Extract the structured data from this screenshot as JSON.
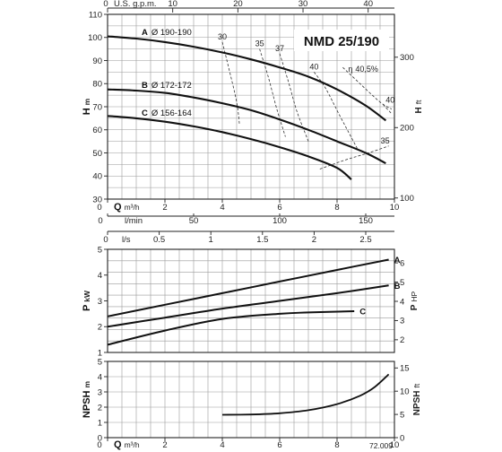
{
  "chart_data": [
    {
      "type": "line",
      "title": "NMD 25/190",
      "ylabel": "H",
      "ylabel_unit": "m",
      "ylabel_right": "H",
      "ylabel_right_unit": "ft",
      "xlabel": "Q",
      "xlabel_unit": "m³/h",
      "top_axis_label": "U.S. g.p.m.",
      "xlim": [
        0,
        10
      ],
      "ylim": [
        30,
        110
      ],
      "x_ticks": [
        "0",
        "2",
        "4",
        "6",
        "8",
        "10"
      ],
      "y_ticks": [
        "30",
        "40",
        "50",
        "60",
        "70",
        "80",
        "90",
        "100",
        "110"
      ],
      "top_ticks": [
        "0",
        "10",
        "20",
        "30",
        "40"
      ],
      "right_ticks": [
        "100",
        "200",
        "300"
      ],
      "lmin_label": "l/min",
      "lmin_ticks": [
        "0",
        "50",
        "100",
        "150"
      ],
      "grid": true,
      "series": [
        {
          "name": "A",
          "name_label": "Ø 190-190",
          "x": [
            0,
            1,
            2,
            3,
            4,
            5,
            6,
            7,
            8,
            9,
            9.7
          ],
          "y": [
            100.5,
            99.5,
            98,
            96,
            93.5,
            90.5,
            87,
            83,
            77.5,
            70.5,
            64
          ]
        },
        {
          "name": "B",
          "name_label": "Ø 172-172",
          "x": [
            0,
            1,
            2,
            3,
            4,
            5,
            6,
            7,
            8,
            9,
            9.7
          ],
          "y": [
            77.5,
            77,
            76,
            74,
            71.5,
            68.5,
            64.5,
            60,
            55,
            50,
            45.5
          ]
        },
        {
          "name": "C",
          "name_label": "Ø 156-164",
          "x": [
            0,
            1,
            2,
            3,
            4,
            5,
            6,
            7,
            8,
            8.5
          ],
          "y": [
            66,
            65,
            63.5,
            61.5,
            59,
            56,
            52.5,
            48.5,
            43.5,
            38.5
          ]
        }
      ],
      "efficiency_lines": [
        {
          "label": "30",
          "x": [
            4.0,
            4.2,
            4.5,
            4.6
          ],
          "y": [
            98,
            88,
            72,
            62
          ]
        },
        {
          "label": "35",
          "x": [
            5.3,
            5.6,
            5.9,
            6.2
          ],
          "y": [
            95,
            83,
            69,
            57
          ]
        },
        {
          "label": "37",
          "x": [
            6.0,
            6.3,
            6.6,
            7.0
          ],
          "y": [
            93,
            81,
            68,
            55
          ]
        },
        {
          "label": "40",
          "x": [
            7.2,
            7.6,
            8.1,
            8.7
          ],
          "y": [
            85,
            78,
            66,
            52
          ]
        },
        {
          "label": "40,5%",
          "label_prefix": "η",
          "x": [
            8.2,
            8.8,
            9.5,
            9.9
          ],
          "y": [
            87,
            80,
            72,
            69
          ]
        },
        {
          "label": "40",
          "x": [
            9.6,
            9.9
          ],
          "y": [
            71,
            67
          ]
        },
        {
          "label": "35",
          "x": [
            7.4,
            8.3,
            9.1,
            9.8
          ],
          "y": [
            43,
            47,
            50,
            53
          ]
        }
      ]
    },
    {
      "type": "line",
      "ylabel": "P",
      "ylabel_unit": "kW",
      "ylabel_right": "P",
      "ylabel_right_unit": "HP",
      "top_axis_label": "l/s",
      "xlim": [
        0,
        10
      ],
      "ylim": [
        1,
        5
      ],
      "y_ticks": [
        "1",
        "2",
        "3",
        "4",
        "5"
      ],
      "right_ticks": [
        "2",
        "3",
        "4",
        "5",
        "6"
      ],
      "top_ticks": [
        "0",
        "0.5",
        "1",
        "1.5",
        "2",
        "2.5"
      ],
      "grid": true,
      "series": [
        {
          "name": "A",
          "x": [
            0,
            2,
            4,
            6,
            8,
            9.8
          ],
          "y": [
            2.4,
            2.85,
            3.3,
            3.75,
            4.2,
            4.6
          ]
        },
        {
          "name": "B",
          "x": [
            0,
            2,
            4,
            6,
            8,
            9.8
          ],
          "y": [
            2.0,
            2.35,
            2.7,
            3.0,
            3.3,
            3.6
          ]
        },
        {
          "name": "C",
          "x": [
            0,
            2,
            4,
            6,
            7,
            8.6
          ],
          "y": [
            1.3,
            1.85,
            2.3,
            2.5,
            2.55,
            2.6
          ]
        }
      ]
    },
    {
      "type": "line",
      "ylabel": "NPSH",
      "ylabel_unit": "m",
      "ylabel_right": "NPSH",
      "ylabel_right_unit": "ft",
      "xlabel": "Q",
      "xlabel_unit": "m³/h",
      "xlim": [
        0,
        10
      ],
      "ylim": [
        0,
        5
      ],
      "x_ticks": [
        "0",
        "2",
        "4",
        "6",
        "8",
        "10"
      ],
      "y_ticks": [
        "0",
        "1",
        "2",
        "3",
        "4",
        "5"
      ],
      "right_ticks": [
        "0",
        "5",
        "10",
        "15"
      ],
      "grid": true,
      "series": [
        {
          "name": "",
          "x": [
            4,
            5,
            6,
            7,
            8,
            8.8,
            9.3,
            9.8
          ],
          "y": [
            1.5,
            1.52,
            1.6,
            1.8,
            2.2,
            2.75,
            3.3,
            4.15
          ]
        }
      ]
    }
  ],
  "figure_code": "72.009"
}
